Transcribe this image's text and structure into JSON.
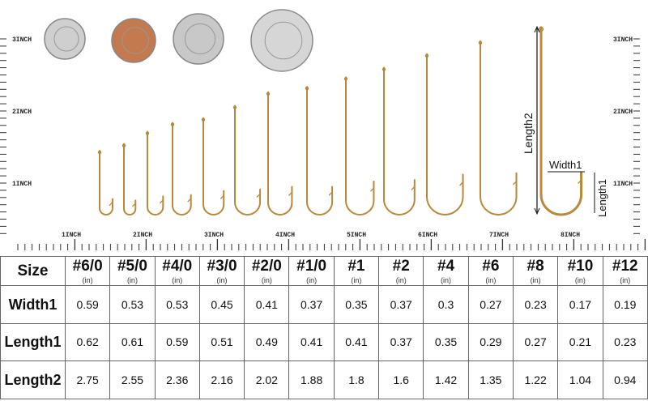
{
  "colors": {
    "hook": "#b8893a",
    "ruler": "#222222",
    "grid": "#666666"
  },
  "ruler": {
    "vertical_labels": [
      "3INCH",
      "2INCH",
      "1INCH"
    ],
    "horizontal_labels": [
      "1INCH",
      "2INCH",
      "3INCH",
      "4INCH",
      "5INCH",
      "6INCH",
      "7INCH",
      "8INCH"
    ]
  },
  "coins": [
    "dime",
    "penny",
    "nickel",
    "quarter"
  ],
  "diagram": {
    "length2": "Length2",
    "width1": "Width1",
    "length1": "Length1"
  },
  "table": {
    "corner": "Size",
    "unit": "(in)",
    "sizes": [
      "#6/0",
      "#5/0",
      "#4/0",
      "#3/0",
      "#2/0",
      "#1/0",
      "#1",
      "#2",
      "#4",
      "#6",
      "#8",
      "#10",
      "#12"
    ],
    "rows": [
      {
        "label": "Width1",
        "values": [
          "0.59",
          "0.53",
          "0.53",
          "0.45",
          "0.41",
          "0.37",
          "0.35",
          "0.37",
          "0.3",
          "0.27",
          "0.23",
          "0.17",
          "0.19"
        ]
      },
      {
        "label": "Length1",
        "values": [
          "0.62",
          "0.61",
          "0.59",
          "0.51",
          "0.49",
          "0.41",
          "0.41",
          "0.37",
          "0.35",
          "0.29",
          "0.27",
          "0.21",
          "0.23"
        ]
      },
      {
        "label": "Length2",
        "values": [
          "2.75",
          "2.55",
          "2.36",
          "2.16",
          "2.02",
          "1.88",
          "1.8",
          "1.6",
          "1.42",
          "1.35",
          "1.22",
          "1.04",
          "0.94"
        ]
      }
    ]
  }
}
